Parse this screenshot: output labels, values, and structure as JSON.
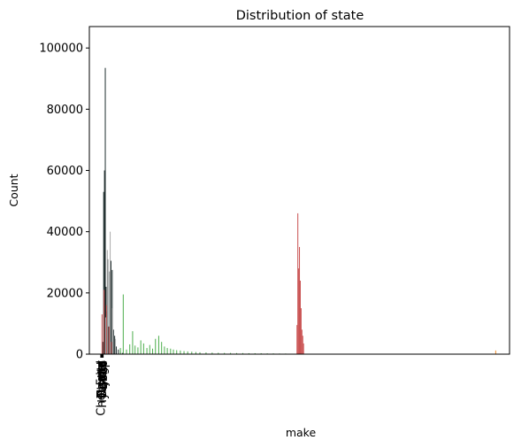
{
  "chart_data": {
    "type": "bar",
    "title": "Distribution of state",
    "xlabel": "make",
    "ylabel": "Count",
    "ylim": [
      0,
      107000
    ],
    "yticks": [
      0,
      20000,
      40000,
      60000,
      80000,
      100000
    ],
    "xtick_labels": [
      "Chevrolet",
      "Ford",
      "Toyota",
      "Nissan",
      "Honda",
      "Dodge",
      "Hyundai",
      "Kia",
      "BMW",
      "Jeep"
    ],
    "grid": false,
    "legend": "none",
    "series": [
      {
        "color": "#1f2d2d",
        "x": [
          0.2,
          0.4,
          0.6,
          0.8,
          1.0,
          1.2,
          1.4,
          1.6,
          1.9,
          2.2,
          2.5,
          2.8,
          3.1,
          3.5,
          4.0,
          4.5,
          5.0
        ],
        "values": [
          4000,
          53000,
          60000,
          93500,
          22000,
          14000,
          31000,
          9000,
          27000,
          30500,
          27500,
          8000,
          6000,
          2500,
          1500,
          800,
          400
        ]
      },
      {
        "color": "#c94f4f",
        "x": [
          0.0,
          0.5,
          1.1,
          1.7,
          2.3,
          47.8,
          48.0,
          48.2,
          48.4,
          48.6,
          48.8,
          49.0,
          49.2,
          49.4
        ],
        "values": [
          13000,
          21000,
          16000,
          9000,
          4000,
          9500,
          46000,
          28000,
          35000,
          24000,
          15000,
          8000,
          6000,
          3500
        ]
      },
      {
        "color": "#aaaaaa",
        "x": [
          0.9,
          1.3,
          2.0,
          2.6,
          3.3
        ],
        "values": [
          12000,
          34000,
          40000,
          15000,
          5000
        ]
      },
      {
        "color": "#4cae4c",
        "x": [
          4.5,
          5.2,
          6.0,
          6.8,
          7.5,
          8.1,
          8.8,
          9.5,
          10.2,
          11.0,
          11.7,
          12.4,
          13.1,
          13.9,
          14.6,
          15.3,
          16.0,
          16.8,
          17.5,
          18.3,
          19.2,
          20.1,
          21.0,
          22.0,
          23.0,
          24.0,
          25.5,
          27.0,
          28.5,
          30.0,
          31.5,
          33.0,
          34.5,
          36.0,
          37.5,
          39.0,
          40.5,
          42.0,
          43.5,
          45.0
        ],
        "values": [
          2000,
          19500,
          1500,
          3200,
          7500,
          2800,
          2200,
          4500,
          3500,
          2000,
          3000,
          1800,
          5000,
          6000,
          4000,
          2500,
          2000,
          1800,
          1500,
          1300,
          1200,
          1000,
          900,
          800,
          700,
          600,
          550,
          500,
          450,
          400,
          400,
          350,
          350,
          300,
          300,
          300,
          250,
          250,
          200,
          200
        ]
      },
      {
        "color": "#f28e2b",
        "x": [
          96.5
        ],
        "values": [
          1200
        ]
      }
    ]
  }
}
